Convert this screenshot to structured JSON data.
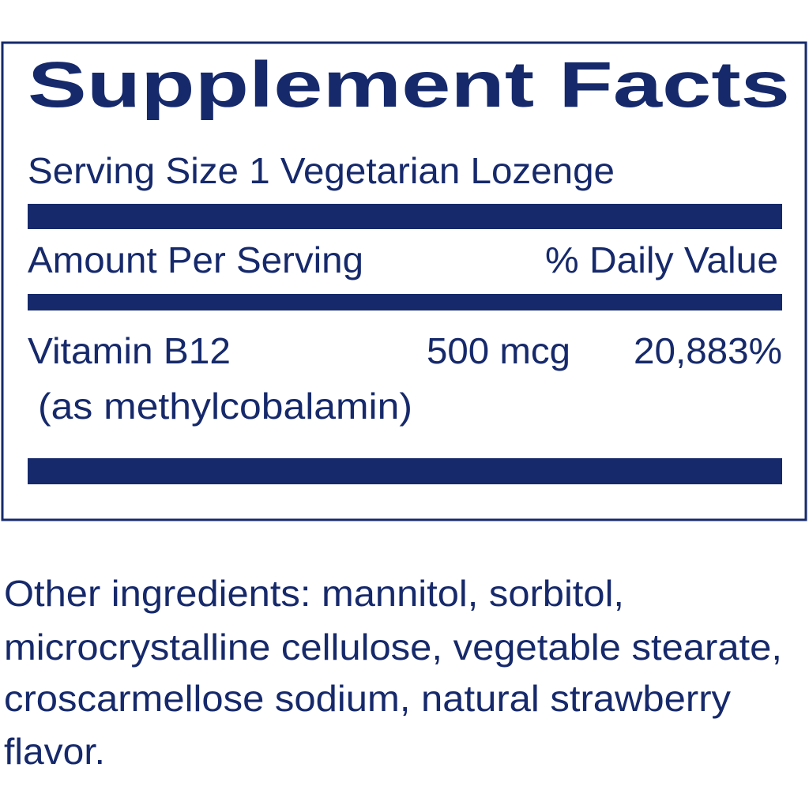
{
  "label": {
    "title": "Supplement Facts",
    "serving_size": "Serving Size 1 Vegetarian Lozenge",
    "header": {
      "amount": "Amount Per Serving",
      "daily_value": "% Daily Value"
    },
    "nutrients": [
      {
        "name": "Vitamin B12",
        "source": "(as methylcobalamin)",
        "amount": "500 mcg",
        "daily_value": "20,883%"
      }
    ]
  },
  "other_ingredients": [
    "Other ingredients: mannitol, sorbitol,",
    "microcrystalline cellulose, vegetable stearate,",
    "croscarmellose sodium, natural strawberry",
    "flavor."
  ]
}
